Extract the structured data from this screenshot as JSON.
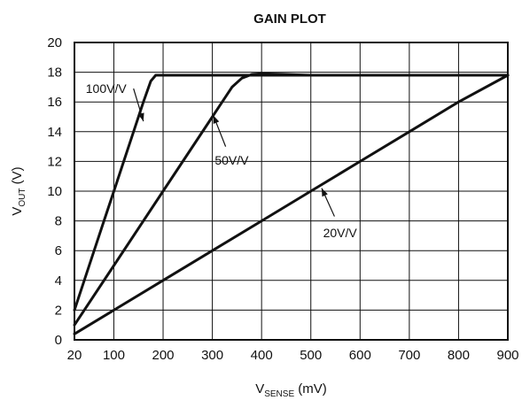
{
  "chart_data": {
    "type": "line",
    "title": "GAIN PLOT",
    "xlabel": {
      "main": "V",
      "sub": "SENSE",
      "unit": " (mV)"
    },
    "ylabel": {
      "main": "V",
      "sub": "OUT",
      "unit": " (V)"
    },
    "xlim": [
      20,
      900
    ],
    "ylim": [
      0,
      20
    ],
    "x_ticks": [
      20,
      100,
      200,
      300,
      400,
      500,
      600,
      700,
      800,
      900
    ],
    "y_ticks": [
      0,
      2,
      4,
      6,
      8,
      10,
      12,
      14,
      16,
      18,
      20
    ],
    "x_grid": [
      100,
      200,
      300,
      400,
      500,
      600,
      700,
      800
    ],
    "y_grid": [
      2,
      4,
      6,
      8,
      10,
      12,
      14,
      16,
      18
    ],
    "grid": true,
    "series": [
      {
        "name": "100V/V",
        "x": [
          20,
          40,
          60,
          80,
          100,
          120,
          140,
          160,
          175,
          185,
          195,
          400,
          900
        ],
        "y": [
          2.0,
          4.0,
          6.0,
          8.0,
          10.0,
          12.0,
          14.0,
          16.0,
          17.4,
          17.8,
          17.8,
          17.8,
          17.8
        ]
      },
      {
        "name": "50V/V",
        "x": [
          20,
          100,
          200,
          300,
          340,
          360,
          380,
          400,
          500,
          900
        ],
        "y": [
          1.0,
          5.0,
          10.0,
          15.0,
          17.0,
          17.6,
          17.85,
          17.9,
          17.8,
          17.8
        ]
      },
      {
        "name": "20V/V",
        "x": [
          20,
          100,
          200,
          300,
          400,
          500,
          600,
          700,
          800,
          900
        ],
        "y": [
          0.4,
          2.0,
          4.0,
          6.0,
          8.0,
          10.0,
          12.0,
          14.0,
          16.0,
          17.8
        ]
      }
    ],
    "annotations": [
      {
        "series": 0,
        "text": "100V/V",
        "text_at": [
          43,
          16.6
        ],
        "arrow_from": [
          140,
          16.9
        ],
        "arrow_to": [
          160,
          14.7
        ]
      },
      {
        "series": 1,
        "text": "50V/V",
        "text_at": [
          305,
          11.8
        ],
        "arrow_from": [
          327,
          13.0
        ],
        "arrow_to": [
          302,
          15.1
        ]
      },
      {
        "series": 2,
        "text": "20V/V",
        "text_at": [
          525,
          6.9
        ],
        "arrow_from": [
          548,
          8.3
        ],
        "arrow_to": [
          522,
          10.2
        ]
      }
    ]
  }
}
